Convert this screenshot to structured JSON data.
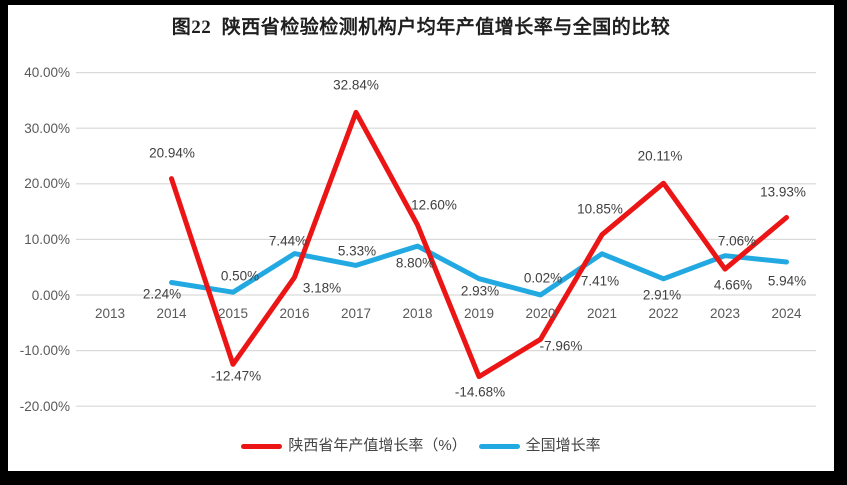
{
  "frame": {
    "background": "#000000",
    "panel_background": "#FFFFFF"
  },
  "chart_data": {
    "type": "line",
    "title": "图22  陕西省检验检测机构户均年产值增长率与全国的比较",
    "categories": [
      "2013",
      "2014",
      "2015",
      "2016",
      "2017",
      "2018",
      "2019",
      "2020",
      "2021",
      "2022",
      "2023",
      "2024"
    ],
    "series": [
      {
        "name": "陕西省年产值增长率（%）",
        "color": "#EC1515",
        "values": [
          null,
          20.94,
          -12.47,
          3.18,
          32.84,
          12.6,
          -14.68,
          -7.96,
          10.85,
          20.11,
          4.66,
          13.93
        ],
        "labels": [
          null,
          "20.94%",
          "-12.47%",
          "3.18%",
          "32.84%",
          "12.60%",
          "-14.68%",
          "-7.96%",
          "10.85%",
          "20.11%",
          "4.66%",
          "13.93%"
        ]
      },
      {
        "name": "全国增长率",
        "color": "#23A9E1",
        "values": [
          null,
          2.24,
          0.5,
          7.44,
          5.33,
          8.8,
          2.93,
          0.02,
          7.41,
          2.91,
          7.06,
          5.94
        ],
        "labels": [
          null,
          "2.24%",
          "0.50%",
          "7.44%",
          "5.33%",
          "8.80%",
          "2.93%",
          "0.02%",
          "7.41%",
          "2.91%",
          "7.06%",
          "5.94%"
        ]
      }
    ],
    "y_axis": {
      "min": -20,
      "max": 40,
      "tick_values": [
        40,
        30,
        20,
        10,
        0,
        -10,
        -20
      ],
      "tick_labels": [
        "40.00%",
        "30.00%",
        "20.00%",
        "10.00%",
        "0.00%",
        "-10.00%",
        "-20.00%"
      ],
      "grid": true
    },
    "x_axis": {
      "labels_below_zero_line": true
    },
    "legend_position": "bottom",
    "colors": {
      "gridline": "#D9D9D9",
      "axis_text": "#595959",
      "data_label_text": "#3F3F3F",
      "title_text": "#1F1F1F"
    }
  }
}
